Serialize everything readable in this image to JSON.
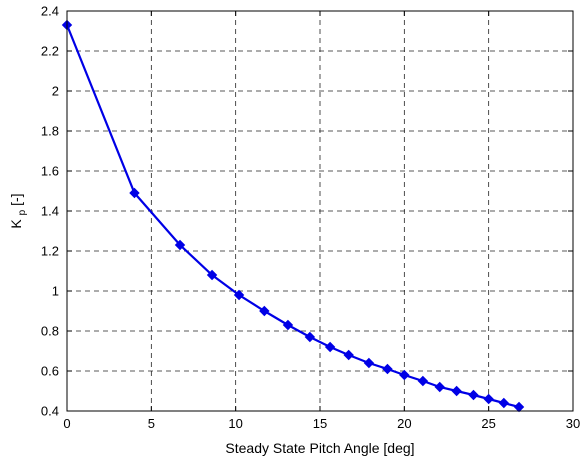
{
  "chart_data": {
    "type": "line",
    "xlabel": "Steady State Pitch Angle [deg]",
    "ylabel_main": "K",
    "ylabel_sub": "p",
    "ylabel_suffix": " [-]",
    "xlim": [
      0,
      30
    ],
    "ylim": [
      0.4,
      2.4
    ],
    "xticks": [
      0,
      5,
      10,
      15,
      20,
      25,
      30
    ],
    "yticks": [
      0.4,
      0.6,
      0.8,
      1,
      1.2,
      1.4,
      1.6,
      1.8,
      2,
      2.2,
      2.4
    ],
    "xtick_labels": [
      "0",
      "5",
      "10",
      "15",
      "20",
      "25",
      "30"
    ],
    "ytick_labels": [
      "0.4",
      "0.6",
      "0.8",
      "1",
      "1.2",
      "1.4",
      "1.6",
      "1.8",
      "2",
      "2.2",
      "2.4"
    ],
    "grid": true,
    "series": [
      {
        "color": "#0000e6",
        "marker": "diamond",
        "x": [
          0,
          4.0,
          6.7,
          8.6,
          10.2,
          11.7,
          13.1,
          14.4,
          15.6,
          16.7,
          17.9,
          19.0,
          20.0,
          21.1,
          22.1,
          23.1,
          24.1,
          25.0,
          25.9,
          26.8
        ],
        "y": [
          2.33,
          1.49,
          1.23,
          1.08,
          0.98,
          0.9,
          0.83,
          0.77,
          0.72,
          0.68,
          0.64,
          0.61,
          0.58,
          0.55,
          0.52,
          0.5,
          0.48,
          0.46,
          0.44,
          0.42
        ]
      }
    ]
  }
}
